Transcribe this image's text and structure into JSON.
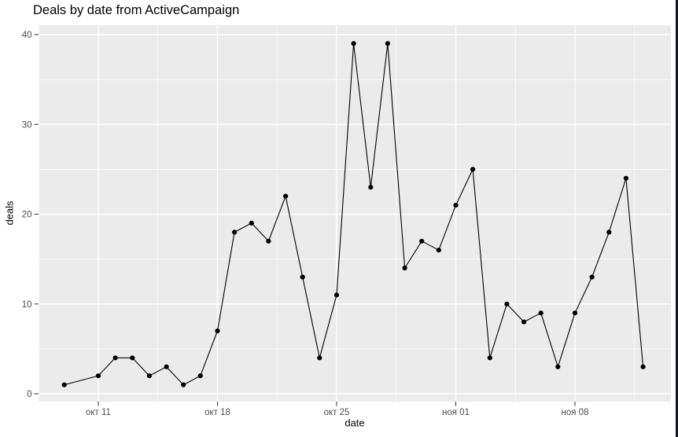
{
  "window": {
    "background": "#ffffff",
    "right_edge_color": "#0d1b26"
  },
  "chart_data": {
    "type": "line",
    "title": "Deals by date from ActiveCampaign",
    "xlabel": "date",
    "ylabel": "deals",
    "legend": "none",
    "ylim": [
      0,
      40
    ],
    "panel_background": "#ebebeb",
    "grid": {
      "major": true,
      "minor": true,
      "color": "#ffffff"
    },
    "line_color": "#000000",
    "point_color": "#000000",
    "axis_text_color": "#4d4d4d",
    "axis_title_color": "#000000",
    "tick_mark_color": "#333333",
    "x_ticks": [
      {
        "label": "окт 11",
        "day": 2
      },
      {
        "label": "окт 18",
        "day": 9
      },
      {
        "label": "окт 25",
        "day": 16
      },
      {
        "label": "ноя 01",
        "day": 23
      },
      {
        "label": "ноя 08",
        "day": 30
      }
    ],
    "y_ticks": [
      {
        "label": "0",
        "value": 0
      },
      {
        "label": "10",
        "value": 10
      },
      {
        "label": "20",
        "value": 20
      },
      {
        "label": "30",
        "value": 30
      },
      {
        "label": "40",
        "value": 40
      }
    ],
    "series": [
      {
        "name": "deals",
        "x": [
          "окт 09",
          "окт 11",
          "окт 12",
          "окт 13",
          "окт 14",
          "окт 15",
          "окт 16",
          "окт 17",
          "окт 18",
          "окт 19",
          "окт 20",
          "окт 21",
          "окт 22",
          "окт 23",
          "окт 24",
          "окт 25",
          "окт 26",
          "окт 27",
          "окт 28",
          "окт 29",
          "окт 30",
          "окт 31",
          "ноя 01",
          "ноя 02",
          "ноя 03",
          "ноя 04",
          "ноя 05",
          "ноя 06",
          "ноя 07",
          "ноя 08",
          "ноя 09",
          "ноя 10",
          "ноя 11",
          "ноя 12"
        ],
        "day_offsets": [
          0,
          2,
          3,
          4,
          5,
          6,
          7,
          8,
          9,
          10,
          11,
          12,
          13,
          14,
          15,
          16,
          17,
          18,
          19,
          20,
          21,
          22,
          23,
          24,
          25,
          26,
          27,
          28,
          29,
          30,
          31,
          32,
          33,
          34
        ],
        "values": [
          1,
          2,
          4,
          4,
          2,
          3,
          1,
          2,
          7,
          18,
          19,
          17,
          22,
          13,
          4,
          11,
          39,
          23,
          39,
          14,
          17,
          16,
          21,
          25,
          4,
          10,
          8,
          9,
          3,
          9,
          13,
          18,
          24,
          3
        ]
      }
    ]
  }
}
